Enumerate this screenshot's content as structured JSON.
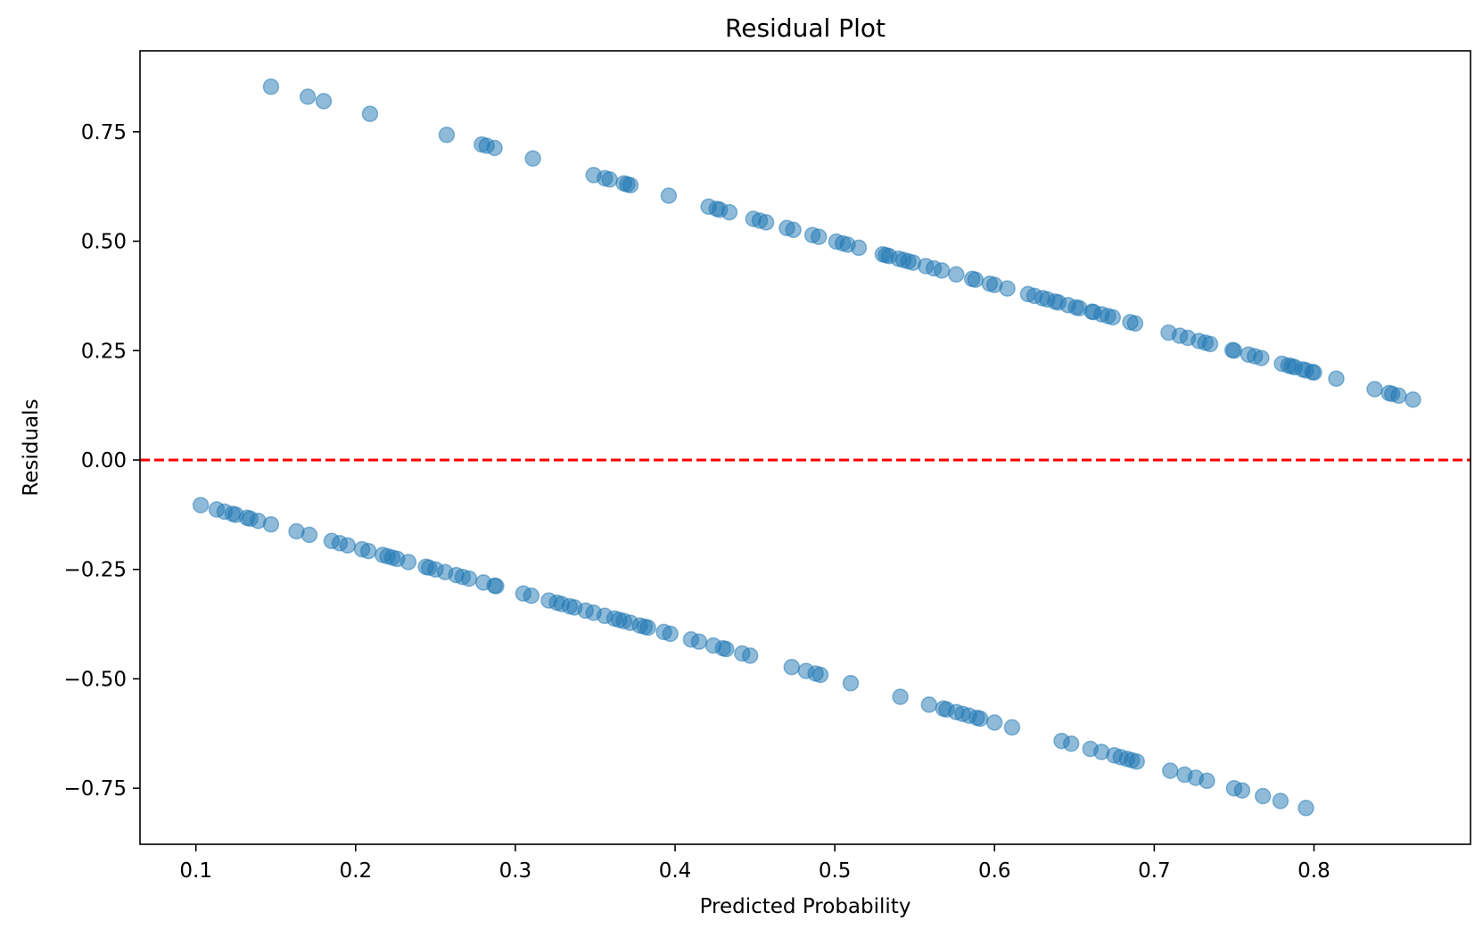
{
  "chart_data": {
    "type": "scatter",
    "title": "Residual Plot",
    "xlabel": "Predicted Probability",
    "ylabel": "Residuals",
    "xlim": [
      0.065,
      0.898
    ],
    "ylim": [
      -0.878,
      0.935
    ],
    "xticks": [
      {
        "value": 0.1,
        "label": "0.1"
      },
      {
        "value": 0.2,
        "label": "0.2"
      },
      {
        "value": 0.3,
        "label": "0.3"
      },
      {
        "value": 0.4,
        "label": "0.4"
      },
      {
        "value": 0.5,
        "label": "0.5"
      },
      {
        "value": 0.6,
        "label": "0.6"
      },
      {
        "value": 0.7,
        "label": "0.7"
      },
      {
        "value": 0.8,
        "label": "0.8"
      }
    ],
    "yticks": [
      {
        "value": 0.75,
        "label": "0.75"
      },
      {
        "value": 0.5,
        "label": "0.50"
      },
      {
        "value": 0.25,
        "label": "0.25"
      },
      {
        "value": 0.0,
        "label": "0.00"
      },
      {
        "value": -0.25,
        "label": "−0.25"
      },
      {
        "value": -0.5,
        "label": "−0.50"
      },
      {
        "value": -0.75,
        "label": "−0.75"
      }
    ],
    "grid": false,
    "reference_line": {
      "y": 0.0,
      "color": "#ff0000",
      "style": "dashed"
    },
    "marker_color": "#1f77b4",
    "marker_alpha": 0.5,
    "series": [
      {
        "x": [
          0.147,
          0.17,
          0.18,
          0.209,
          0.257,
          0.279,
          0.282,
          0.287,
          0.311,
          0.349,
          0.356,
          0.359,
          0.368,
          0.37,
          0.372,
          0.396,
          0.421,
          0.426,
          0.428,
          0.434,
          0.449,
          0.453,
          0.457,
          0.47,
          0.474,
          0.486,
          0.49,
          0.501,
          0.505,
          0.508,
          0.515,
          0.53,
          0.532,
          0.534,
          0.54,
          0.543,
          0.546,
          0.549,
          0.557,
          0.562,
          0.567,
          0.576,
          0.586,
          0.588,
          0.597,
          0.6,
          0.608,
          0.621,
          0.625,
          0.63,
          0.633,
          0.638,
          0.64,
          0.646,
          0.651,
          0.653,
          0.661,
          0.662,
          0.667,
          0.671,
          0.674,
          0.685,
          0.688,
          0.709,
          0.716,
          0.721,
          0.728,
          0.732,
          0.735,
          0.749,
          0.75,
          0.759,
          0.763,
          0.767,
          0.78,
          0.784,
          0.786,
          0.788,
          0.793,
          0.795,
          0.799,
          0.8,
          0.814,
          0.838,
          0.847,
          0.849,
          0.853,
          0.862
        ],
        "y": [
          0.853,
          0.83,
          0.82,
          0.791,
          0.743,
          0.721,
          0.718,
          0.713,
          0.689,
          0.651,
          0.644,
          0.641,
          0.632,
          0.63,
          0.628,
          0.604,
          0.579,
          0.574,
          0.572,
          0.566,
          0.551,
          0.547,
          0.543,
          0.53,
          0.526,
          0.514,
          0.51,
          0.499,
          0.495,
          0.492,
          0.485,
          0.47,
          0.468,
          0.466,
          0.46,
          0.457,
          0.454,
          0.451,
          0.443,
          0.438,
          0.433,
          0.424,
          0.414,
          0.412,
          0.403,
          0.4,
          0.392,
          0.379,
          0.375,
          0.37,
          0.367,
          0.362,
          0.36,
          0.354,
          0.349,
          0.347,
          0.339,
          0.338,
          0.333,
          0.329,
          0.326,
          0.315,
          0.312,
          0.291,
          0.284,
          0.279,
          0.272,
          0.268,
          0.265,
          0.251,
          0.25,
          0.241,
          0.237,
          0.233,
          0.22,
          0.216,
          0.214,
          0.212,
          0.207,
          0.205,
          0.201,
          0.2,
          0.186,
          0.162,
          0.153,
          0.151,
          0.147,
          0.138
        ]
      },
      {
        "x": [
          0.103,
          0.113,
          0.118,
          0.123,
          0.125,
          0.132,
          0.134,
          0.139,
          0.147,
          0.163,
          0.171,
          0.185,
          0.19,
          0.195,
          0.204,
          0.208,
          0.217,
          0.22,
          0.223,
          0.226,
          0.233,
          0.244,
          0.246,
          0.25,
          0.256,
          0.263,
          0.267,
          0.271,
          0.28,
          0.287,
          0.288,
          0.305,
          0.31,
          0.321,
          0.326,
          0.329,
          0.334,
          0.337,
          0.344,
          0.349,
          0.356,
          0.362,
          0.365,
          0.368,
          0.372,
          0.378,
          0.381,
          0.383,
          0.393,
          0.397,
          0.41,
          0.415,
          0.424,
          0.43,
          0.432,
          0.442,
          0.447,
          0.473,
          0.482,
          0.488,
          0.491,
          0.51,
          0.541,
          0.559,
          0.568,
          0.57,
          0.576,
          0.58,
          0.584,
          0.589,
          0.591,
          0.6,
          0.611,
          0.642,
          0.648,
          0.66,
          0.667,
          0.675,
          0.679,
          0.683,
          0.686,
          0.689,
          0.71,
          0.719,
          0.726,
          0.733,
          0.75,
          0.755,
          0.768,
          0.779,
          0.795
        ],
        "y": [
          -0.103,
          -0.113,
          -0.118,
          -0.123,
          -0.125,
          -0.132,
          -0.134,
          -0.139,
          -0.147,
          -0.163,
          -0.171,
          -0.185,
          -0.19,
          -0.195,
          -0.204,
          -0.208,
          -0.217,
          -0.22,
          -0.223,
          -0.226,
          -0.233,
          -0.244,
          -0.246,
          -0.25,
          -0.256,
          -0.263,
          -0.267,
          -0.271,
          -0.28,
          -0.287,
          -0.288,
          -0.305,
          -0.31,
          -0.321,
          -0.326,
          -0.329,
          -0.334,
          -0.337,
          -0.344,
          -0.349,
          -0.356,
          -0.362,
          -0.365,
          -0.368,
          -0.372,
          -0.378,
          -0.381,
          -0.383,
          -0.393,
          -0.397,
          -0.41,
          -0.415,
          -0.424,
          -0.43,
          -0.432,
          -0.442,
          -0.447,
          -0.473,
          -0.482,
          -0.488,
          -0.491,
          -0.51,
          -0.541,
          -0.559,
          -0.568,
          -0.57,
          -0.576,
          -0.58,
          -0.584,
          -0.589,
          -0.591,
          -0.6,
          -0.611,
          -0.642,
          -0.648,
          -0.66,
          -0.667,
          -0.675,
          -0.679,
          -0.683,
          -0.686,
          -0.689,
          -0.71,
          -0.719,
          -0.726,
          -0.733,
          -0.75,
          -0.755,
          -0.768,
          -0.779,
          -0.795
        ]
      }
    ]
  }
}
